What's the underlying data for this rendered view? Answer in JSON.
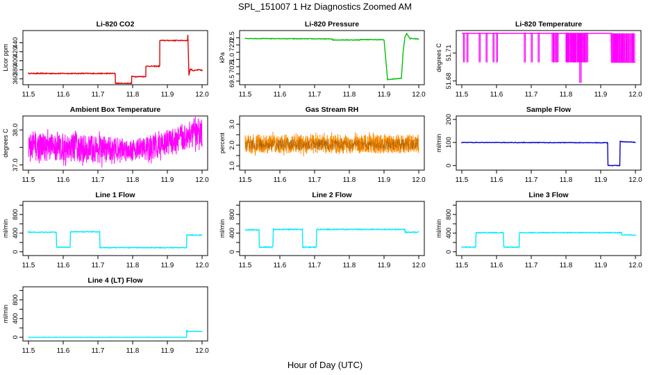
{
  "title": "SPL_151007  1 Hz Diagnostics Zoomed AM",
  "xlabel": "Hour of Day (UTC)",
  "chart_data": [
    {
      "type": "line",
      "title": "Li-820 CO2",
      "ylabel": "Licor ppm",
      "color": "#e00000",
      "xlim": [
        11.5,
        12.0
      ],
      "xticks": [
        11.5,
        11.6,
        11.7,
        11.8,
        11.9,
        12.0
      ],
      "ylim": [
        347,
        467
      ],
      "yticks": [
        360,
        380,
        400,
        420,
        440
      ],
      "noise": 1.0,
      "x": [
        11.5,
        11.75,
        11.7502,
        11.797,
        11.7972,
        11.838,
        11.8382,
        11.878,
        11.8782,
        11.958,
        11.959,
        11.962,
        11.966,
        11.975,
        11.99,
        12.0
      ],
      "y": [
        372,
        372,
        350,
        350,
        365,
        365,
        388,
        388,
        445,
        445,
        458,
        368,
        382,
        378,
        380,
        379
      ]
    },
    {
      "type": "line",
      "title": "Li-820 Pressure",
      "ylabel": "kPa",
      "color": "#00c000",
      "xlim": [
        11.5,
        12.0
      ],
      "xticks": [
        11.5,
        11.6,
        11.7,
        11.8,
        11.9,
        12.0
      ],
      "ylim": [
        69.25,
        73.0
      ],
      "yticks": [
        69.5,
        70.0,
        70.5,
        71.0,
        71.5,
        72.0,
        72.5
      ],
      "ytick_labels": [
        "69.5",
        "",
        "70.5",
        "71.0",
        "",
        "72.0",
        "72.5"
      ],
      "noise": 0.02,
      "x": [
        11.5,
        11.75,
        11.752,
        11.83,
        11.832,
        11.9,
        11.905,
        11.91,
        11.95,
        11.955,
        11.96,
        11.965,
        11.975,
        12.0
      ],
      "y": [
        72.45,
        72.42,
        72.35,
        72.35,
        72.38,
        72.36,
        71.0,
        69.6,
        69.7,
        71.5,
        72.55,
        72.8,
        72.45,
        72.42
      ]
    },
    {
      "type": "line",
      "title": "Li-820 Temperature",
      "ylabel": "degrees C",
      "color": "#ff00ff",
      "xlim": [
        11.5,
        12.0
      ],
      "xticks": [
        11.5,
        11.6,
        11.7,
        11.8,
        11.9,
        12.0
      ],
      "ylim": [
        51.676,
        51.734
      ],
      "yticks": [
        51.68,
        51.71
      ],
      "x": [
        11.5,
        11.93,
        11.931,
        12.0
      ],
      "y": [
        51.731,
        51.731,
        51.7,
        51.7
      ],
      "spikes": [
        11.505,
        11.515,
        11.55,
        11.57,
        11.59,
        11.6,
        11.68,
        11.7,
        11.72,
        11.76,
        11.765,
        11.77,
        11.775,
        11.8,
        11.805,
        11.81,
        11.815,
        11.82,
        11.825,
        11.83,
        11.835,
        11.84,
        11.842,
        11.85,
        11.855,
        11.86,
        11.935,
        11.94,
        11.945,
        11.95,
        11.955,
        11.96,
        11.965,
        11.97,
        11.975,
        11.985,
        11.99,
        11.995
      ],
      "spike_low": 51.7,
      "deep_spike_x": 11.84,
      "deep_spike_y": 51.678
    },
    {
      "type": "line",
      "title": "Ambient Box Temperature",
      "ylabel": "degrees C",
      "color": "#ff00ff",
      "xlim": [
        11.5,
        12.0
      ],
      "xticks": [
        11.5,
        11.6,
        11.7,
        11.8,
        11.9,
        12.0
      ],
      "ylim": [
        36.85,
        38.4
      ],
      "yticks": [
        37.0,
        37.5,
        38.0
      ],
      "ytick_labels": [
        "37.0",
        "",
        "38.0"
      ],
      "band": {
        "x": [
          11.5,
          11.6,
          11.7,
          11.8,
          11.85,
          11.9,
          11.95,
          12.0
        ],
        "lo": [
          37.1,
          37.1,
          37.05,
          37.15,
          37.1,
          37.3,
          37.4,
          37.5
        ],
        "hi": [
          37.9,
          37.9,
          37.85,
          37.75,
          37.85,
          38.0,
          38.2,
          38.3
        ]
      }
    },
    {
      "type": "line",
      "title": "Gas Stream RH",
      "ylabel": "percent",
      "color": "#ff8c00",
      "xlim": [
        11.5,
        12.0
      ],
      "xticks": [
        11.5,
        11.6,
        11.7,
        11.8,
        11.9,
        12.0
      ],
      "ylim": [
        0.8,
        3.4
      ],
      "yticks": [
        1.0,
        1.5,
        2.0,
        2.5,
        3.0
      ],
      "ytick_labels": [
        "1.0",
        "",
        "2.0",
        "",
        "3.0"
      ],
      "band": {
        "x": [
          11.5,
          12.0
        ],
        "lo": [
          1.6,
          1.6
        ],
        "hi": [
          2.5,
          2.5
        ]
      }
    },
    {
      "type": "line",
      "title": "Sample Flow",
      "ylabel": "ml/min",
      "color": "#0000cc",
      "xlim": [
        11.5,
        12.0
      ],
      "xticks": [
        11.5,
        11.6,
        11.7,
        11.8,
        11.9,
        12.0
      ],
      "ylim": [
        -20,
        215
      ],
      "yticks": [
        0,
        100,
        200
      ],
      "noise": 1.2,
      "x": [
        11.5,
        11.9,
        11.92,
        11.921,
        11.955,
        11.956,
        11.962,
        12.0
      ],
      "y": [
        100,
        99,
        99,
        0,
        0,
        105,
        103,
        101
      ]
    },
    {
      "type": "line",
      "title": "Line 1 Flow",
      "ylabel": "ml/min",
      "color": "#00eaff",
      "xlim": [
        11.5,
        12.0
      ],
      "xticks": [
        11.5,
        11.6,
        11.7,
        11.8,
        11.9,
        12.0
      ],
      "ylim": [
        -80,
        1080
      ],
      "yticks": [
        0,
        200,
        400,
        600,
        800,
        1000
      ],
      "ytick_labels": [
        "0",
        "400",
        "800"
      ],
      "ytick_label_values": [
        0,
        400,
        800
      ],
      "noise": 8,
      "x": [
        11.5,
        11.58,
        11.581,
        11.62,
        11.621,
        11.705,
        11.706,
        11.955,
        11.956,
        12.0
      ],
      "y": [
        420,
        420,
        100,
        100,
        430,
        430,
        90,
        90,
        360,
        360
      ]
    },
    {
      "type": "line",
      "title": "Line 2 Flow",
      "ylabel": "ml/min",
      "color": "#00eaff",
      "xlim": [
        11.5,
        12.0
      ],
      "xticks": [
        11.5,
        11.6,
        11.7,
        11.8,
        11.9,
        12.0
      ],
      "ylim": [
        -80,
        1080
      ],
      "yticks": [
        0,
        200,
        400,
        600,
        800,
        1000
      ],
      "ytick_labels": [
        "0",
        "400",
        "800"
      ],
      "ytick_label_values": [
        0,
        400,
        800
      ],
      "noise": 10,
      "x": [
        11.5,
        11.54,
        11.541,
        11.58,
        11.581,
        11.665,
        11.666,
        11.705,
        11.706,
        11.96,
        11.961,
        12.0
      ],
      "y": [
        470,
        470,
        100,
        100,
        480,
        480,
        100,
        100,
        480,
        480,
        420,
        420
      ]
    },
    {
      "type": "line",
      "title": "Line 3 Flow",
      "ylabel": "ml/min",
      "color": "#00eaff",
      "xlim": [
        11.5,
        12.0
      ],
      "xticks": [
        11.5,
        11.6,
        11.7,
        11.8,
        11.9,
        12.0
      ],
      "ylim": [
        -80,
        1080
      ],
      "yticks": [
        0,
        200,
        400,
        600,
        800,
        1000
      ],
      "ytick_labels": [
        "0",
        "400",
        "800"
      ],
      "ytick_label_values": [
        0,
        400,
        800
      ],
      "noise": 8,
      "x": [
        11.5,
        11.54,
        11.541,
        11.62,
        11.621,
        11.665,
        11.666,
        11.96,
        11.961,
        12.0
      ],
      "y": [
        100,
        100,
        410,
        410,
        100,
        100,
        410,
        410,
        360,
        360
      ]
    },
    {
      "type": "line",
      "title": "Line 4 (LT) Flow",
      "ylabel": "ml/min",
      "color": "#00eaff",
      "xlim": [
        11.5,
        12.0
      ],
      "xticks": [
        11.5,
        11.6,
        11.7,
        11.8,
        11.9,
        12.0
      ],
      "ylim": [
        -80,
        1080
      ],
      "yticks": [
        0,
        200,
        400,
        600,
        800,
        1000
      ],
      "ytick_labels": [
        "0",
        "400",
        "800"
      ],
      "ytick_label_values": [
        0,
        400,
        800
      ],
      "noise": 3,
      "x": [
        11.5,
        11.955,
        11.9555,
        11.958,
        11.965,
        12.0
      ],
      "y": [
        0,
        0,
        160,
        120,
        125,
        125
      ]
    }
  ]
}
